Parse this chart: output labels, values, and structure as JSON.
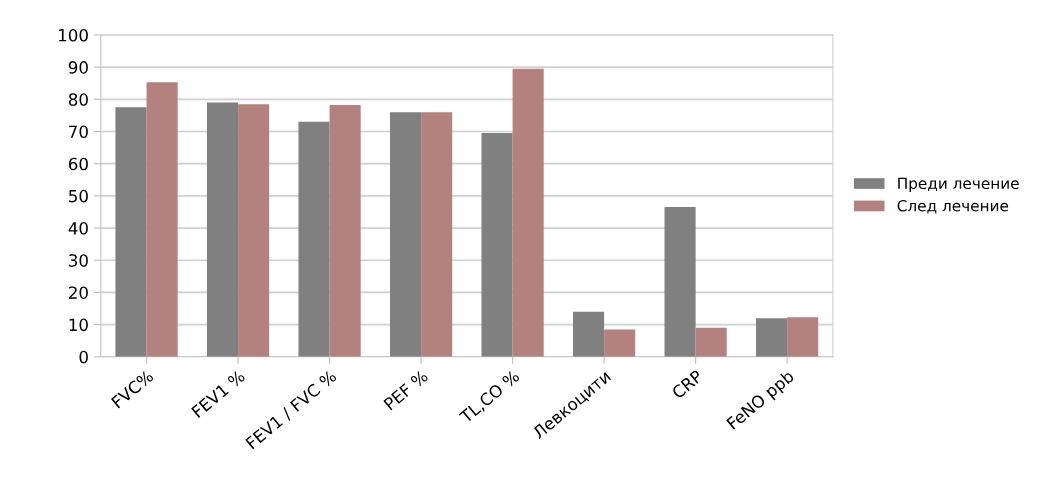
{
  "chart_data": {
    "type": "bar",
    "categories": [
      "FVC%",
      "FEV1 %",
      "FEV1 / FVC %",
      "PEF %",
      "TL,CO %",
      "Левкоцити",
      "CRP",
      "FeNO ppb"
    ],
    "series": [
      {
        "name": "Преди лечение",
        "color": "#808080",
        "values": [
          77.5,
          79,
          73,
          76,
          69.5,
          14,
          46.5,
          12
        ]
      },
      {
        "name": "След лечение",
        "color": "#b4827e",
        "values": [
          85.3,
          78.5,
          78.2,
          76,
          89.5,
          8.5,
          9,
          12.3
        ]
      }
    ],
    "ylim": [
      0,
      100
    ],
    "yticks": [
      0,
      10,
      20,
      30,
      40,
      50,
      60,
      70,
      80,
      90,
      100
    ],
    "grid": "y",
    "legend": "right"
  }
}
